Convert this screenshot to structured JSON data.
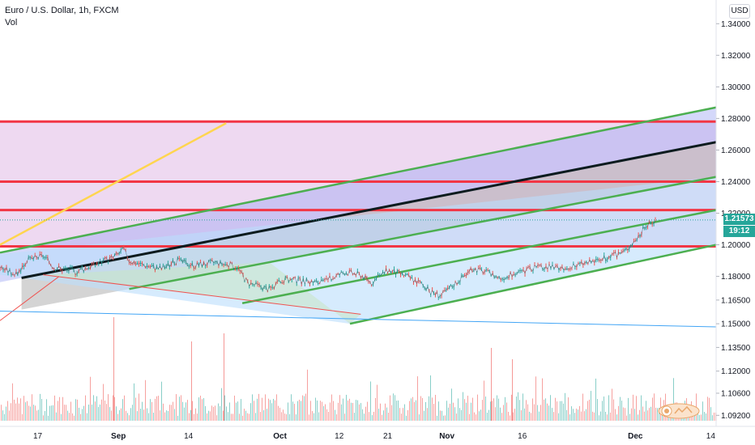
{
  "header": {
    "title": "Euro / U.S. Dollar, 1h, FXCM",
    "subtitle": "Vol",
    "currency_button": "USD"
  },
  "price_tags": {
    "last_price": "1.21573",
    "countdown": "19:12",
    "price_color": "#26a69a",
    "countdown_color": "#26a69a"
  },
  "chart_data": {
    "type": "candlestick",
    "symbol": "EURUSD",
    "interval": "1h",
    "y_axis_labels": [
      "1.34000",
      "1.32000",
      "1.30000",
      "1.28000",
      "1.26000",
      "1.24000",
      "1.22000",
      "1.20000",
      "1.18000",
      "1.16500",
      "1.15000",
      "1.13500",
      "1.12000",
      "1.10600",
      "1.09200"
    ],
    "y_axis_values": [
      1.34,
      1.32,
      1.3,
      1.28,
      1.26,
      1.24,
      1.22,
      1.2,
      1.18,
      1.165,
      1.15,
      1.135,
      1.12,
      1.106,
      1.092
    ],
    "x_axis_labels": [
      "17",
      "Sep",
      "14",
      "Oct",
      "12",
      "21",
      "Nov",
      "16",
      "Dec",
      "14"
    ],
    "x_axis_days": [
      17,
      32,
      45,
      62,
      73,
      82,
      93,
      107,
      128,
      142
    ],
    "bold_x_labels": [
      "Sep",
      "Oct",
      "Nov",
      "Dec"
    ],
    "x_range_days": [
      10,
      143
    ],
    "y_range": [
      1.085,
      1.355
    ],
    "price_path": [
      [
        10,
        1.186
      ],
      [
        13,
        1.181
      ],
      [
        15,
        1.19
      ],
      [
        18,
        1.193
      ],
      [
        20,
        1.186
      ],
      [
        24,
        1.183
      ],
      [
        28,
        1.188
      ],
      [
        31,
        1.192
      ],
      [
        33,
        1.197
      ],
      [
        34,
        1.19
      ],
      [
        37,
        1.187
      ],
      [
        40,
        1.185
      ],
      [
        43,
        1.19
      ],
      [
        46,
        1.187
      ],
      [
        50,
        1.189
      ],
      [
        54,
        1.186
      ],
      [
        56,
        1.176
      ],
      [
        60,
        1.172
      ],
      [
        63,
        1.178
      ],
      [
        66,
        1.177
      ],
      [
        70,
        1.176
      ],
      [
        74,
        1.183
      ],
      [
        77,
        1.181
      ],
      [
        79,
        1.176
      ],
      [
        82,
        1.184
      ],
      [
        85,
        1.181
      ],
      [
        88,
        1.176
      ],
      [
        90,
        1.17
      ],
      [
        92,
        1.168
      ],
      [
        94,
        1.174
      ],
      [
        96,
        1.18
      ],
      [
        98,
        1.185
      ],
      [
        100,
        1.183
      ],
      [
        103,
        1.179
      ],
      [
        106,
        1.182
      ],
      [
        109,
        1.185
      ],
      [
        112,
        1.186
      ],
      [
        115,
        1.184
      ],
      [
        118,
        1.188
      ],
      [
        121,
        1.19
      ],
      [
        124,
        1.193
      ],
      [
        126,
        1.196
      ],
      [
        128,
        1.203
      ],
      [
        130,
        1.212
      ],
      [
        132,
        1.2157
      ]
    ],
    "horizontal_levels": [
      {
        "price": 1.278,
        "color": "#f23645"
      },
      {
        "price": 1.24,
        "color": "#f23645"
      },
      {
        "price": 1.222,
        "color": "#f23645"
      },
      {
        "price": 1.199,
        "color": "#f23645"
      }
    ],
    "drawn_lines": [
      {
        "name": "yellow",
        "color": "#ffd54f",
        "from": [
          10,
          1.2
        ],
        "to": [
          52,
          1.277
        ]
      },
      {
        "name": "black-trend",
        "color": "#0b1b1e",
        "from": [
          14,
          1.179
        ],
        "to": [
          143,
          1.265
        ]
      },
      {
        "name": "green-upper",
        "color": "#4caf50",
        "from": [
          10,
          1.195
        ],
        "to": [
          143,
          1.287
        ]
      },
      {
        "name": "green-mid",
        "color": "#4caf50",
        "from": [
          34,
          1.172
        ],
        "to": [
          143,
          1.243
        ]
      },
      {
        "name": "green-lower-1",
        "color": "#4caf50",
        "from": [
          55,
          1.163
        ],
        "to": [
          143,
          1.222
        ]
      },
      {
        "name": "green-lower-2",
        "color": "#4caf50",
        "from": [
          75,
          1.15
        ],
        "to": [
          143,
          1.2
        ]
      },
      {
        "name": "red-diag",
        "color": "#ef5350",
        "from": [
          10,
          1.152
        ],
        "to": [
          21,
          1.18
        ]
      },
      {
        "name": "red-diag-2",
        "color": "#ef5350",
        "from": [
          18,
          1.181
        ],
        "to": [
          77,
          1.156
        ]
      },
      {
        "name": "blue-low",
        "color": "#42a5f5",
        "from": [
          10,
          1.158
        ],
        "to": [
          143,
          1.148
        ]
      }
    ],
    "zones": [
      {
        "name": "purple-zone",
        "color": "#ce93d8",
        "top": 1.278,
        "bottom": 1.199
      }
    ],
    "volume_max": 1.0,
    "volume_color_up": "#26a69a",
    "volume_color_down": "#ef5350",
    "grid": false
  }
}
